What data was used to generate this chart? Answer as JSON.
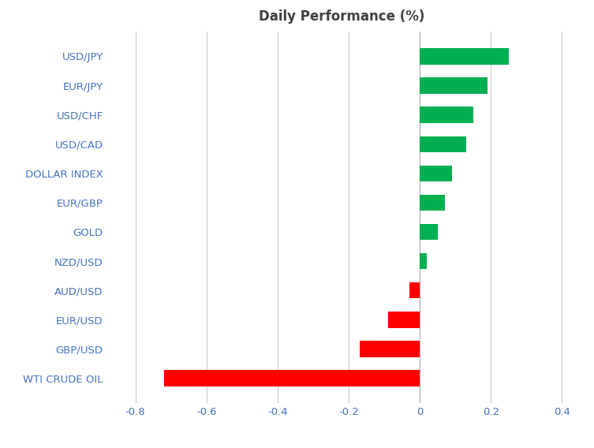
{
  "categories": [
    "WTI CRUDE OIL",
    "GBP/USD",
    "EUR/USD",
    "AUD/USD",
    "NZD/USD",
    "GOLD",
    "EUR/GBP",
    "DOLLAR INDEX",
    "USD/CAD",
    "USD/CHF",
    "EUR/JPY",
    "USD/JPY"
  ],
  "values": [
    -0.72,
    -0.17,
    -0.09,
    -0.03,
    0.02,
    0.05,
    0.07,
    0.09,
    0.13,
    0.15,
    0.19,
    0.25
  ],
  "title": "Daily Performance (%)",
  "xlim": [
    -0.88,
    0.44
  ],
  "xticks": [
    -0.8,
    -0.6,
    -0.4,
    -0.2,
    0.0,
    0.2,
    0.4
  ],
  "xtick_labels": [
    "-0.8",
    "-0.6",
    "-0.4",
    "-0.2",
    "0",
    "0.2",
    "0.4"
  ],
  "positive_color": "#00b050",
  "negative_color": "#ff0000",
  "background_color": "#ffffff",
  "grid_color": "#c8c8c8",
  "label_color": "#4472c4",
  "title_color": "#404040",
  "title_fontsize": 12,
  "tick_fontsize": 9.5,
  "label_fontsize": 9.5,
  "bar_height": 0.55
}
